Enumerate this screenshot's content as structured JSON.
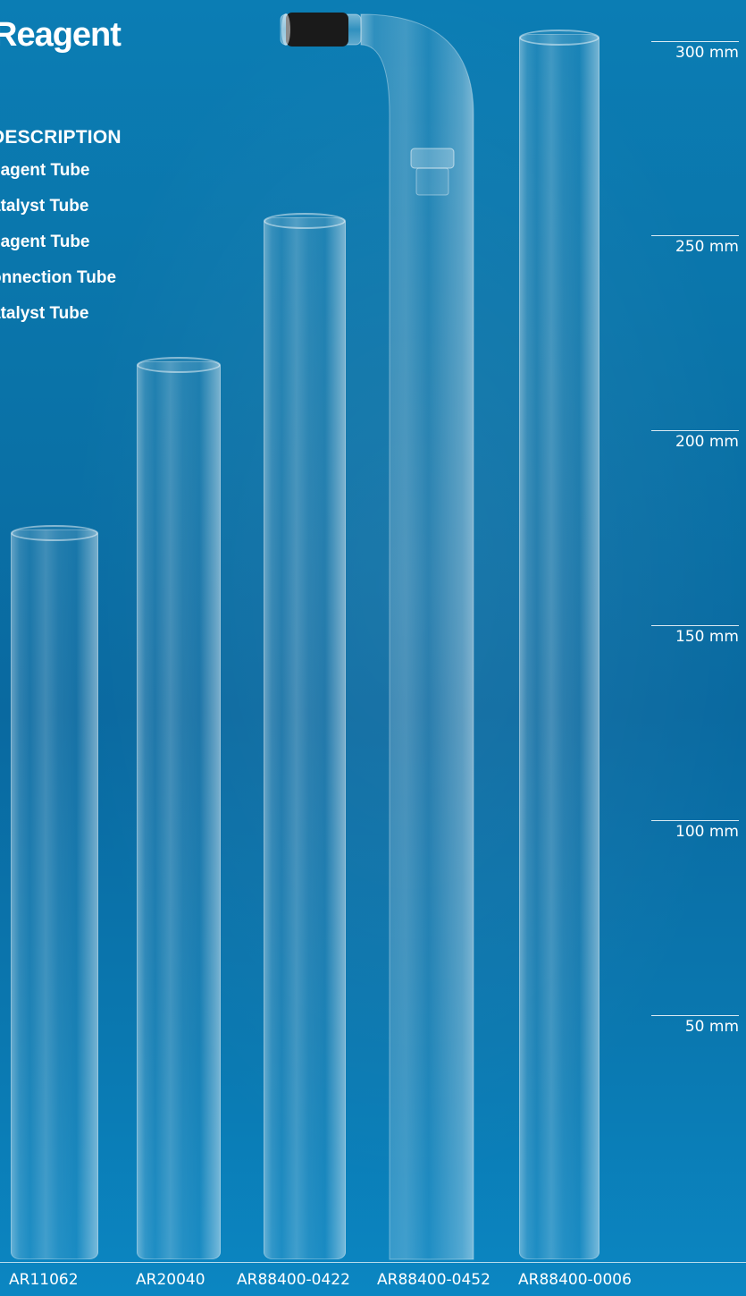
{
  "title": "Reagent",
  "description": {
    "header": "DESCRIPTION",
    "items": [
      "eagent Tube",
      "atalyst Tube",
      "eagent Tube",
      "onnection Tube",
      "atalyst Tube"
    ]
  },
  "scale": {
    "labels": [
      "300 mm",
      "250 mm",
      "200 mm",
      "150 mm",
      "100 mm",
      "50 mm"
    ]
  },
  "parts": [
    {
      "code": "AR11062",
      "length_mm": 186
    },
    {
      "code": "AR20040",
      "length_mm": 230
    },
    {
      "code": "AR88400-0422",
      "length_mm": 267
    },
    {
      "code": "AR88400-0452",
      "length_mm": 320,
      "shape": "bent-with-connector"
    },
    {
      "code": "AR88400-0006",
      "length_mm": 314
    }
  ],
  "colors": {
    "background_top": "#0b7db4",
    "background_mid": "#0969a0",
    "background_bottom": "#0b86c2",
    "text": "#ffffff",
    "connector": "#1a1a1a"
  }
}
